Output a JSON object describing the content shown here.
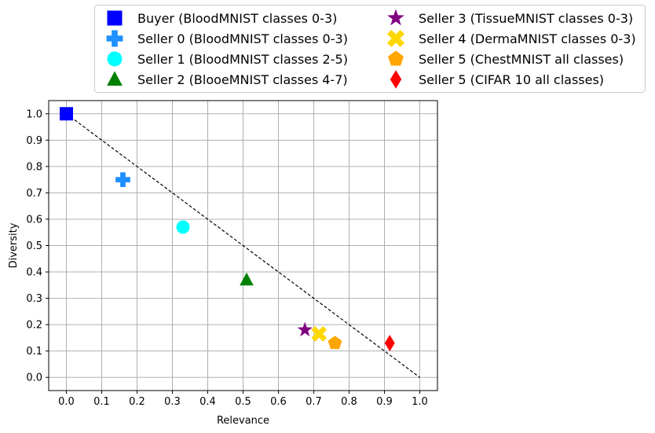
{
  "chart_data": {
    "type": "scatter",
    "xlabel": "Relevance",
    "ylabel": "Diversity",
    "xlim": [
      -0.05,
      1.05
    ],
    "ylim": [
      -0.05,
      1.05
    ],
    "xticks": [
      "0.0",
      "0.1",
      "0.2",
      "0.3",
      "0.4",
      "0.5",
      "0.6",
      "0.7",
      "0.8",
      "0.9",
      "1.0"
    ],
    "yticks": [
      "0.0",
      "0.1",
      "0.2",
      "0.3",
      "0.4",
      "0.5",
      "0.6",
      "0.7",
      "0.8",
      "0.9",
      "1.0"
    ],
    "grid": true,
    "legend_position": "top, outside plot, two columns",
    "reference_line": {
      "x": [
        0.0,
        1.0
      ],
      "y": [
        1.0,
        0.0
      ],
      "style": "dashed",
      "color": "#000000"
    },
    "series": [
      {
        "name": "Buyer (BloodMNIST classes 0-3)",
        "marker": "square",
        "color": "#0000ff",
        "x": 0.0,
        "y": 1.0
      },
      {
        "name": "Seller 0 (BloodMNIST classes 0-3)",
        "marker": "plus",
        "color": "#1e90ff",
        "x": 0.16,
        "y": 0.75
      },
      {
        "name": "Seller 1 (BloodMNIST classes 2-5)",
        "marker": "circle",
        "color": "#00ffff",
        "x": 0.33,
        "y": 0.57
      },
      {
        "name": "Seller 2 (BlooeMNIST classes 4-7)",
        "marker": "triangle",
        "color": "#008000",
        "x": 0.51,
        "y": 0.37
      },
      {
        "name": "Seller 3 (TissueMNIST classes 0-3)",
        "marker": "star",
        "color": "#800080",
        "x": 0.675,
        "y": 0.18
      },
      {
        "name": "Seller 4 (DermaMNIST classes 0-3)",
        "marker": "x",
        "color": "#ffd700",
        "x": 0.715,
        "y": 0.165
      },
      {
        "name": "Seller 5 (ChestMNIST all classes)",
        "marker": "pentagon",
        "color": "#ffa500",
        "x": 0.76,
        "y": 0.13
      },
      {
        "name": "Seller 5 (CIFAR 10 all classes)",
        "marker": "diamond",
        "color": "#ff0000",
        "x": 0.915,
        "y": 0.13
      }
    ]
  }
}
